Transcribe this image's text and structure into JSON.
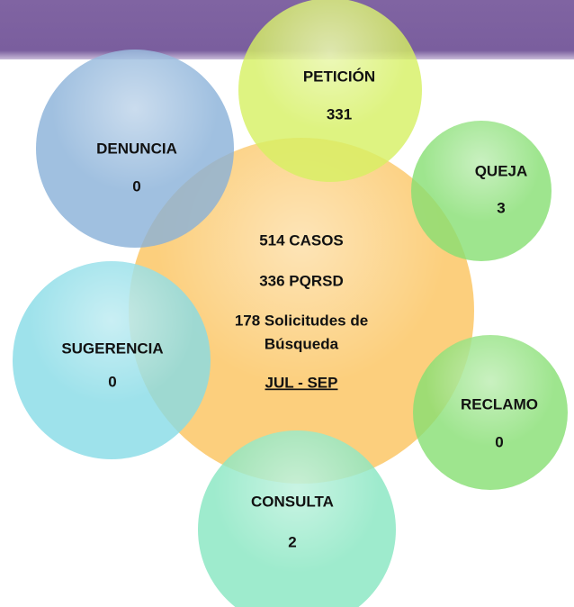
{
  "center": {
    "lines": [
      "514 CASOS",
      "336 PQRSD",
      "178 Solicitudes de",
      "Búsqueda",
      "JUL - SEP"
    ]
  },
  "nodes": [
    {
      "label": "PETICIÓN",
      "value": 331
    },
    {
      "label": "QUEJA",
      "value": 3
    },
    {
      "label": "RECLAMO",
      "value": 0
    },
    {
      "label": "CONSULTA",
      "value": 2
    },
    {
      "label": "SUGERENCIA",
      "value": 0
    },
    {
      "label": "DENUNCIA",
      "value": 0
    }
  ]
}
